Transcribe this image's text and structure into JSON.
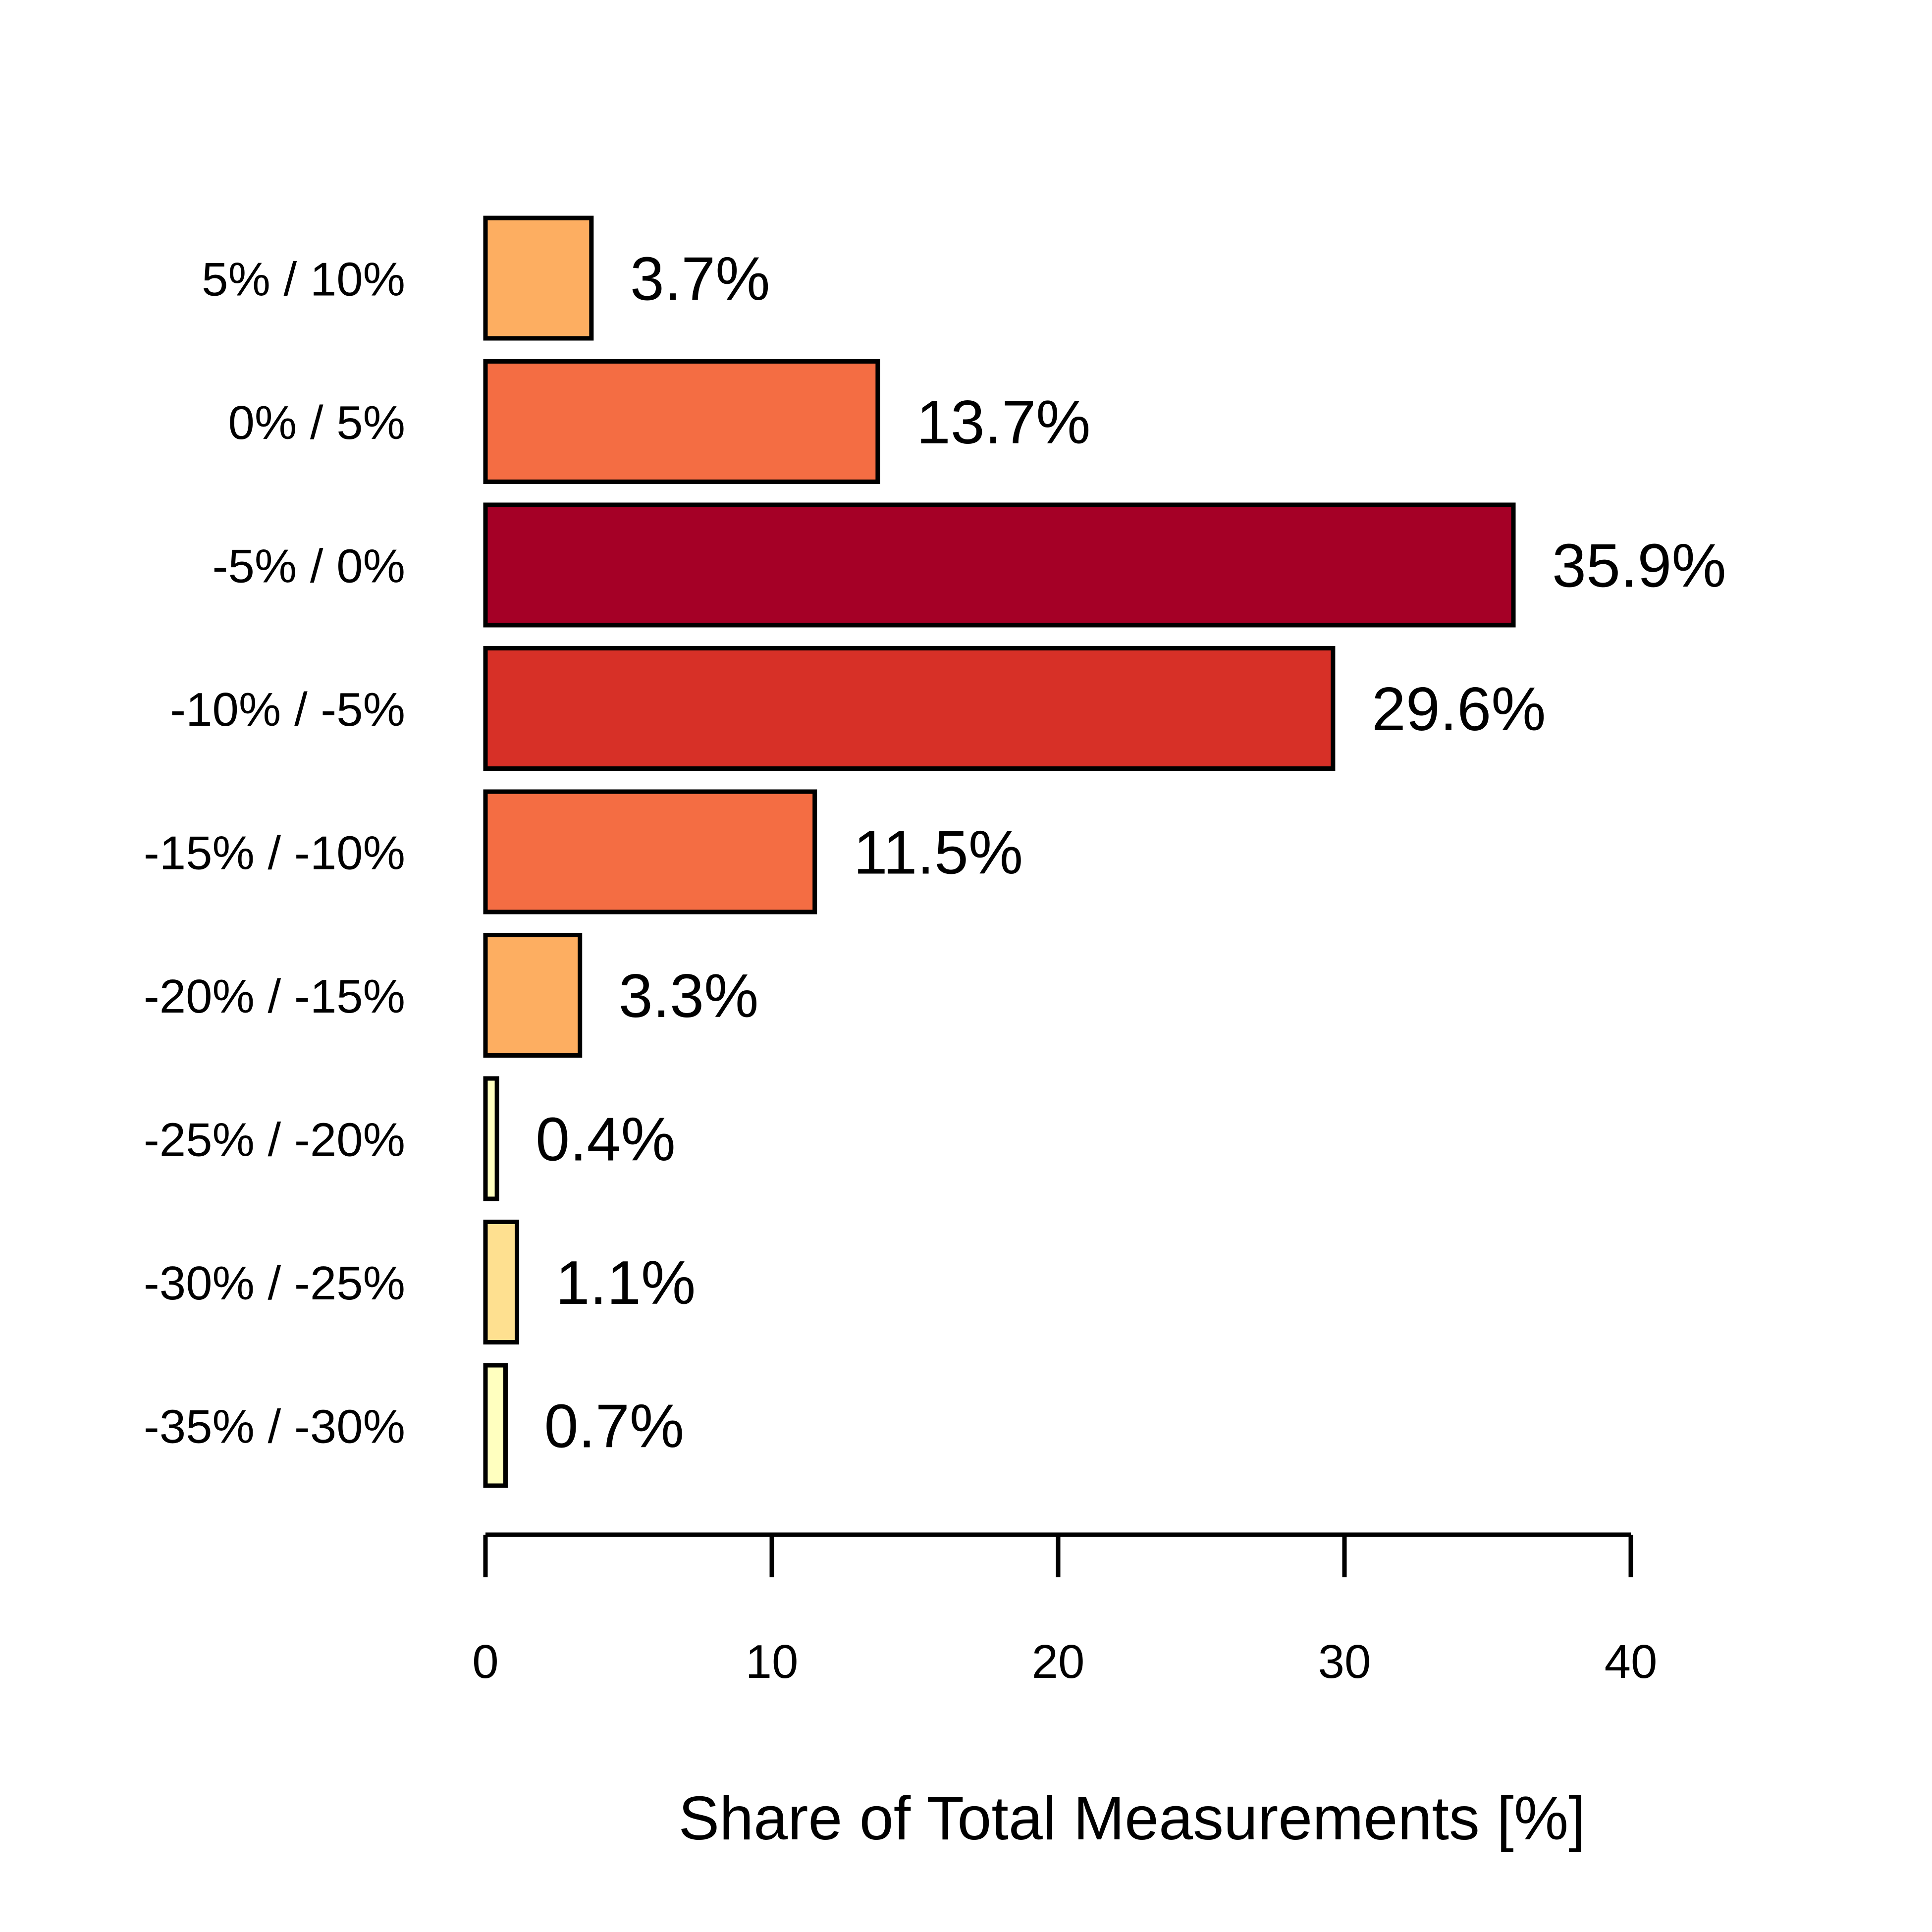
{
  "chart_data": {
    "type": "bar",
    "orientation": "horizontal",
    "categories": [
      "5% / 10%",
      "0% / 5%",
      "-5% / 0%",
      "-10% / -5%",
      "-15% / -10%",
      "-20% / -15%",
      "-25% / -20%",
      "-30% / -25%",
      "-35% / -30%"
    ],
    "values": [
      3.7,
      13.7,
      35.9,
      29.6,
      11.5,
      3.3,
      0.4,
      1.1,
      0.7
    ],
    "value_labels": [
      "3.7%",
      "13.7%",
      "35.9%",
      "29.6%",
      "11.5%",
      "3.3%",
      "0.4%",
      "1.1%",
      "0.7%"
    ],
    "colors": [
      "#fdae61",
      "#f46d43",
      "#a50026",
      "#d73027",
      "#f46d43",
      "#fdae61",
      "#ffffbf",
      "#fee090",
      "#ffffbf"
    ],
    "xlabel": "Share of Total Measurements [%]",
    "ylabel": "",
    "xlim": [
      0,
      40
    ],
    "xticks": [
      "0",
      "10",
      "20",
      "30",
      "40"
    ],
    "grid": false,
    "legend": "none"
  }
}
